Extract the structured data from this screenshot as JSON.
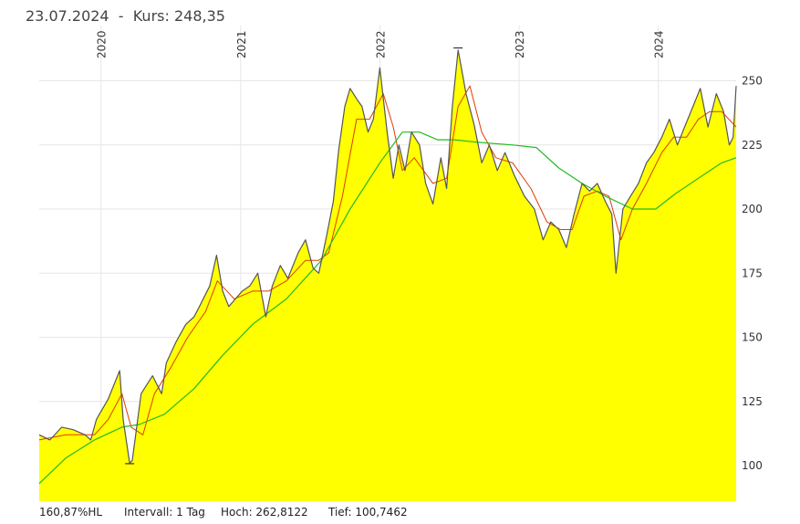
{
  "header": {
    "date": "23.07.2024",
    "separator": "  -  ",
    "price_label": "Kurs: 248,35"
  },
  "footer": {
    "hl": "160,87%HL",
    "interval": "Intervall: 1 Tag",
    "high": "Hoch: 262,8122",
    "low": "Tief: 100,7462"
  },
  "colors": {
    "area_fill": "#ffff00",
    "price_line": "#555555",
    "ma_short": "#e03c00",
    "ma_long": "#22bb22",
    "grid": "#e6e6e6"
  },
  "chart_data": {
    "type": "area",
    "x_tick_labels": [
      "2020",
      "2021",
      "2022",
      "2023",
      "2024"
    ],
    "y_tick_labels": [
      "100",
      "125",
      "150",
      "175",
      "200",
      "225",
      "250"
    ],
    "ylim": [
      88,
      258
    ],
    "xlim": [
      "2019-07-23",
      "2024-07-23"
    ],
    "high_marker": {
      "date": "2022-07-25",
      "value": 262.8122
    },
    "low_marker": {
      "date": "2020-03-16",
      "value": 100.7462
    },
    "series": [
      {
        "role": "price",
        "points": [
          [
            "2019-07-23",
            112
          ],
          [
            "2019-08-20",
            110
          ],
          [
            "2019-09-20",
            115
          ],
          [
            "2019-10-20",
            114
          ],
          [
            "2019-11-20",
            112
          ],
          [
            "2019-12-05",
            110
          ],
          [
            "2019-12-20",
            118
          ],
          [
            "2020-01-20",
            126
          ],
          [
            "2020-02-19",
            137
          ],
          [
            "2020-02-28",
            118
          ],
          [
            "2020-03-16",
            101
          ],
          [
            "2020-03-23",
            102
          ],
          [
            "2020-04-15",
            128
          ],
          [
            "2020-05-15",
            135
          ],
          [
            "2020-06-08",
            128
          ],
          [
            "2020-06-20",
            140
          ],
          [
            "2020-07-15",
            148
          ],
          [
            "2020-08-10",
            155
          ],
          [
            "2020-09-01",
            158
          ],
          [
            "2020-09-15",
            162
          ],
          [
            "2020-10-12",
            170
          ],
          [
            "2020-10-30",
            182
          ],
          [
            "2020-11-15",
            168
          ],
          [
            "2020-12-01",
            162
          ],
          [
            "2021-01-05",
            168
          ],
          [
            "2021-01-25",
            170
          ],
          [
            "2021-02-15",
            175
          ],
          [
            "2021-03-08",
            158
          ],
          [
            "2021-03-25",
            170
          ],
          [
            "2021-04-15",
            178
          ],
          [
            "2021-05-05",
            173
          ],
          [
            "2021-06-01",
            183
          ],
          [
            "2021-06-20",
            188
          ],
          [
            "2021-07-10",
            177
          ],
          [
            "2021-07-25",
            175
          ],
          [
            "2021-08-15",
            190
          ],
          [
            "2021-09-01",
            203
          ],
          [
            "2021-09-15",
            223
          ],
          [
            "2021-10-01",
            240
          ],
          [
            "2021-10-15",
            247
          ],
          [
            "2021-11-01",
            243
          ],
          [
            "2021-11-15",
            240
          ],
          [
            "2021-12-01",
            230
          ],
          [
            "2021-12-15",
            235
          ],
          [
            "2022-01-01",
            255
          ],
          [
            "2022-01-20",
            230
          ],
          [
            "2022-02-05",
            212
          ],
          [
            "2022-02-20",
            225
          ],
          [
            "2022-03-08",
            215
          ],
          [
            "2022-03-25",
            230
          ],
          [
            "2022-04-15",
            225
          ],
          [
            "2022-05-01",
            210
          ],
          [
            "2022-05-20",
            202
          ],
          [
            "2022-06-10",
            220
          ],
          [
            "2022-06-25",
            208
          ],
          [
            "2022-07-10",
            240
          ],
          [
            "2022-07-25",
            262
          ],
          [
            "2022-08-15",
            245
          ],
          [
            "2022-09-05",
            233
          ],
          [
            "2022-09-25",
            218
          ],
          [
            "2022-10-15",
            225
          ],
          [
            "2022-11-05",
            215
          ],
          [
            "2022-11-25",
            222
          ],
          [
            "2022-12-20",
            213
          ],
          [
            "2023-01-15",
            205
          ],
          [
            "2023-02-10",
            200
          ],
          [
            "2023-03-05",
            188
          ],
          [
            "2023-03-25",
            195
          ],
          [
            "2023-04-15",
            192
          ],
          [
            "2023-05-05",
            185
          ],
          [
            "2023-05-25",
            198
          ],
          [
            "2023-06-15",
            210
          ],
          [
            "2023-07-05",
            207
          ],
          [
            "2023-07-25",
            210
          ],
          [
            "2023-08-15",
            203
          ],
          [
            "2023-09-01",
            198
          ],
          [
            "2023-09-12",
            175
          ],
          [
            "2023-09-30",
            200
          ],
          [
            "2023-10-20",
            205
          ],
          [
            "2023-11-10",
            210
          ],
          [
            "2023-12-01",
            218
          ],
          [
            "2023-12-20",
            222
          ],
          [
            "2024-01-10",
            228
          ],
          [
            "2024-01-30",
            235
          ],
          [
            "2024-02-20",
            225
          ],
          [
            "2024-03-10",
            232
          ],
          [
            "2024-04-01",
            240
          ],
          [
            "2024-04-20",
            247
          ],
          [
            "2024-05-10",
            232
          ],
          [
            "2024-06-01",
            245
          ],
          [
            "2024-06-20",
            238
          ],
          [
            "2024-07-05",
            225
          ],
          [
            "2024-07-15",
            228
          ],
          [
            "2024-07-23",
            248
          ]
        ]
      },
      {
        "role": "moving-average-short",
        "points": [
          [
            "2019-07-23",
            110
          ],
          [
            "2019-10-01",
            112
          ],
          [
            "2019-12-15",
            112
          ],
          [
            "2020-01-20",
            118
          ],
          [
            "2020-02-25",
            128
          ],
          [
            "2020-03-20",
            115
          ],
          [
            "2020-04-20",
            112
          ],
          [
            "2020-05-20",
            128
          ],
          [
            "2020-07-01",
            138
          ],
          [
            "2020-08-15",
            150
          ],
          [
            "2020-10-01",
            160
          ],
          [
            "2020-11-01",
            172
          ],
          [
            "2020-12-15",
            165
          ],
          [
            "2021-02-01",
            168
          ],
          [
            "2021-03-15",
            168
          ],
          [
            "2021-05-01",
            172
          ],
          [
            "2021-06-20",
            180
          ],
          [
            "2021-07-25",
            180
          ],
          [
            "2021-08-20",
            183
          ],
          [
            "2021-09-25",
            205
          ],
          [
            "2021-11-01",
            235
          ],
          [
            "2021-12-05",
            235
          ],
          [
            "2022-01-10",
            245
          ],
          [
            "2022-02-05",
            232
          ],
          [
            "2022-03-01",
            215
          ],
          [
            "2022-04-01",
            220
          ],
          [
            "2022-05-20",
            210
          ],
          [
            "2022-06-25",
            212
          ],
          [
            "2022-07-25",
            240
          ],
          [
            "2022-08-25",
            248
          ],
          [
            "2022-09-25",
            230
          ],
          [
            "2022-11-01",
            220
          ],
          [
            "2022-12-15",
            218
          ],
          [
            "2023-02-01",
            208
          ],
          [
            "2023-03-15",
            195
          ],
          [
            "2023-04-20",
            192
          ],
          [
            "2023-05-20",
            192
          ],
          [
            "2023-06-20",
            205
          ],
          [
            "2023-07-25",
            207
          ],
          [
            "2023-08-25",
            205
          ],
          [
            "2023-09-25",
            188
          ],
          [
            "2023-10-25",
            200
          ],
          [
            "2023-12-01",
            210
          ],
          [
            "2024-01-10",
            222
          ],
          [
            "2024-02-10",
            228
          ],
          [
            "2024-03-15",
            228
          ],
          [
            "2024-04-15",
            235
          ],
          [
            "2024-05-15",
            238
          ],
          [
            "2024-06-15",
            238
          ],
          [
            "2024-07-23",
            232
          ]
        ]
      },
      {
        "role": "moving-average-long",
        "points": [
          [
            "2019-07-23",
            93
          ],
          [
            "2019-10-01",
            103
          ],
          [
            "2019-12-15",
            110
          ],
          [
            "2020-02-25",
            115
          ],
          [
            "2020-04-10",
            116
          ],
          [
            "2020-06-15",
            120
          ],
          [
            "2020-09-01",
            130
          ],
          [
            "2020-11-15",
            143
          ],
          [
            "2021-02-01",
            155
          ],
          [
            "2021-05-01",
            165
          ],
          [
            "2021-08-01",
            180
          ],
          [
            "2021-10-15",
            200
          ],
          [
            "2022-01-01",
            218
          ],
          [
            "2022-03-01",
            230
          ],
          [
            "2022-04-15",
            230
          ],
          [
            "2022-06-01",
            227
          ],
          [
            "2022-07-15",
            227
          ],
          [
            "2022-09-15",
            226
          ],
          [
            "2022-12-15",
            225
          ],
          [
            "2023-02-15",
            224
          ],
          [
            "2023-04-15",
            216
          ],
          [
            "2023-06-15",
            210
          ],
          [
            "2023-08-15",
            205
          ],
          [
            "2023-10-25",
            200
          ],
          [
            "2023-12-25",
            200
          ],
          [
            "2024-02-15",
            206
          ],
          [
            "2024-04-15",
            212
          ],
          [
            "2024-06-15",
            218
          ],
          [
            "2024-07-23",
            220
          ]
        ]
      }
    ]
  }
}
